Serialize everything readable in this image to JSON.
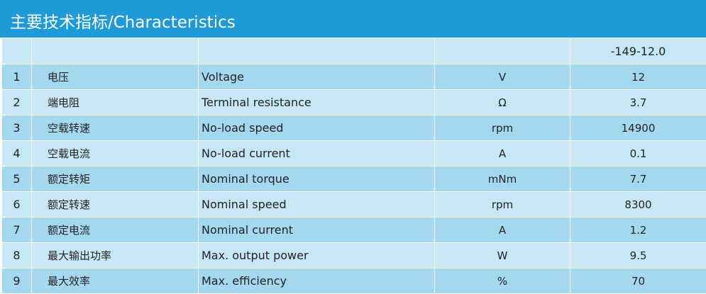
{
  "title": "主要技术指标/Characteristics",
  "header": {
    "model": "-149-12.0"
  },
  "rows": [
    {
      "no": "1",
      "cn": "电压",
      "en": "Voltage",
      "unit": "V",
      "value": "12"
    },
    {
      "no": "2",
      "cn": "端电阻",
      "en": "Terminal resistance",
      "unit": "Ω",
      "value": "3.7"
    },
    {
      "no": "3",
      "cn": "空载转速",
      "en": "No-load  speed",
      "unit": "rpm",
      "value": "14900"
    },
    {
      "no": "4",
      "cn": "空载电流",
      "en": "No-load current",
      "unit": "A",
      "value": "0.1"
    },
    {
      "no": "5",
      "cn": "额定转矩",
      "en": "Nominal torque",
      "unit": "mNm",
      "value": "7.7"
    },
    {
      "no": "6",
      "cn": "额定转速",
      "en": "Nominal speed",
      "unit": "rpm",
      "value": "8300"
    },
    {
      "no": "7",
      "cn": "额定电流",
      "en": "Nominal current",
      "unit": "A",
      "value": "1.2"
    },
    {
      "no": "8",
      "cn": "最大输出功率",
      "en": "Max. output power",
      "unit": "W",
      "value": "9.5"
    },
    {
      "no": "9",
      "cn": "最大效率",
      "en": "Max. efficiency",
      "unit": "%",
      "value": "70"
    }
  ],
  "colors": {
    "title_bar": "#1f9ad8",
    "row_light": "#c8e7f5",
    "row_dark": "#a3d8ef",
    "title_text": "#ffffff"
  }
}
